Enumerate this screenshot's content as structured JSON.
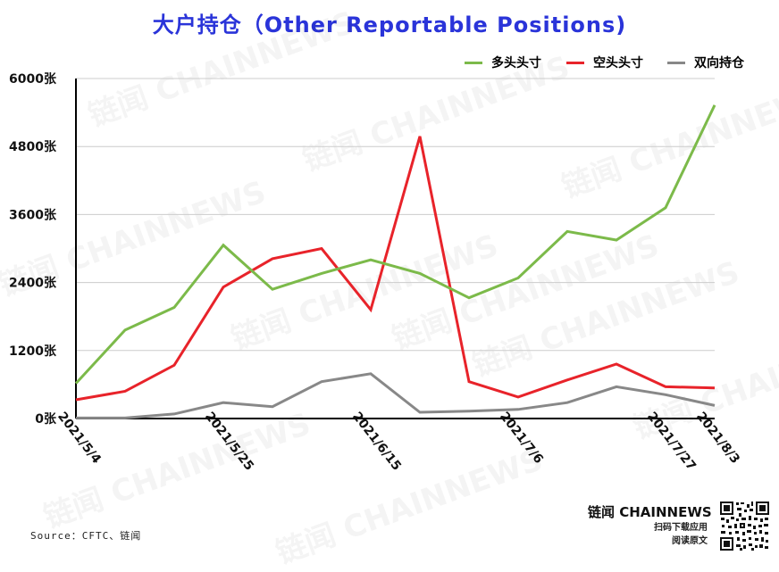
{
  "title": "大户持仓（Other Reportable Positions)",
  "source": "Source：CFTC、链闻",
  "brand": {
    "name": "链闻 CHAINNEWS",
    "line1": "扫码下载应用",
    "line2": "阅读原文"
  },
  "watermark_text": "链闻 CHAINNEWS",
  "colors": {
    "title": "#2a34d9",
    "long": "#7cba4a",
    "short": "#e8232a",
    "spread": "#888888",
    "grid": "#cccccc",
    "axis": "#000000"
  },
  "chart_data": {
    "type": "line",
    "title": "大户持仓（Other Reportable Positions)",
    "x": [
      "2021/5/4",
      "2021/5/11",
      "2021/5/18",
      "2021/5/25",
      "2021/6/1",
      "2021/6/8",
      "2021/6/15",
      "2021/6/22",
      "2021/6/29",
      "2021/7/6",
      "2021/7/13",
      "2021/7/20",
      "2021/7/27",
      "2021/8/3"
    ],
    "x_tick_labels": [
      "2021/5/4",
      "2021/5/25",
      "2021/6/15",
      "2021/7/6",
      "2021/7/27",
      "2021/8/3"
    ],
    "y_tick_labels": [
      "0张",
      "1200张",
      "2400张",
      "3600张",
      "4800张",
      "6000张"
    ],
    "ylim": [
      0,
      6000
    ],
    "grid": true,
    "legend_position": "top-right",
    "series": [
      {
        "name": "多头头寸",
        "color": "#7cba4a",
        "values": [
          620,
          1560,
          1960,
          3060,
          2280,
          2560,
          2800,
          2560,
          2130,
          2480,
          3300,
          3150,
          3720,
          5530
        ]
      },
      {
        "name": "空头头寸",
        "color": "#e8232a",
        "values": [
          330,
          480,
          940,
          2320,
          2820,
          3000,
          1920,
          4980,
          650,
          380,
          680,
          960,
          560,
          540
        ]
      },
      {
        "name": "双向持仓",
        "color": "#888888",
        "values": [
          10,
          10,
          80,
          280,
          210,
          650,
          790,
          110,
          130,
          160,
          280,
          560,
          420,
          230
        ]
      }
    ]
  }
}
